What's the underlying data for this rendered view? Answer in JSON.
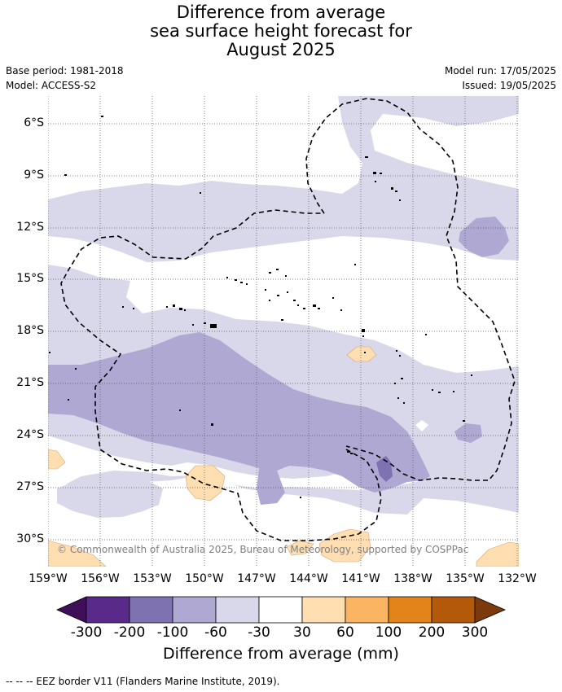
{
  "title_lines": [
    "Difference from average",
    "sea surface height forecast for",
    "August 2025"
  ],
  "base_period": "Base period: 1981-2018",
  "model": "Model: ACCESS-S2",
  "model_run": "Model run: 17/05/2025",
  "issued": "Issued: 19/05/2025",
  "lat_labels": [
    "6°S",
    "9°S",
    "12°S",
    "15°S",
    "18°S",
    "21°S",
    "24°S",
    "27°S",
    "30°S"
  ],
  "lon_labels": [
    "159°W",
    "156°W",
    "153°W",
    "150°W",
    "147°W",
    "144°W",
    "141°W",
    "138°W",
    "135°W",
    "132°W"
  ],
  "copyright": "© Commonwealth of Australia 2025, Bureau of Meteorology, supported by COSPPac",
  "colorbar": {
    "labels": [
      "-300",
      "-200",
      "-100",
      "-60",
      "-30",
      "30",
      "60",
      "100",
      "200",
      "300"
    ],
    "colors": [
      "#3f0f5a",
      "#5a2a8a",
      "#7f72b0",
      "#aea8d2",
      "#d8d8ea",
      "#ffffff",
      "#ffdeb2",
      "#fbb562",
      "#e2841a",
      "#b45909",
      "#7c3a0c"
    ],
    "title": "Difference from average (mm)"
  },
  "footer": "--  --  -- EEZ border V11 (Flanders Marine Institute, 2019)."
}
